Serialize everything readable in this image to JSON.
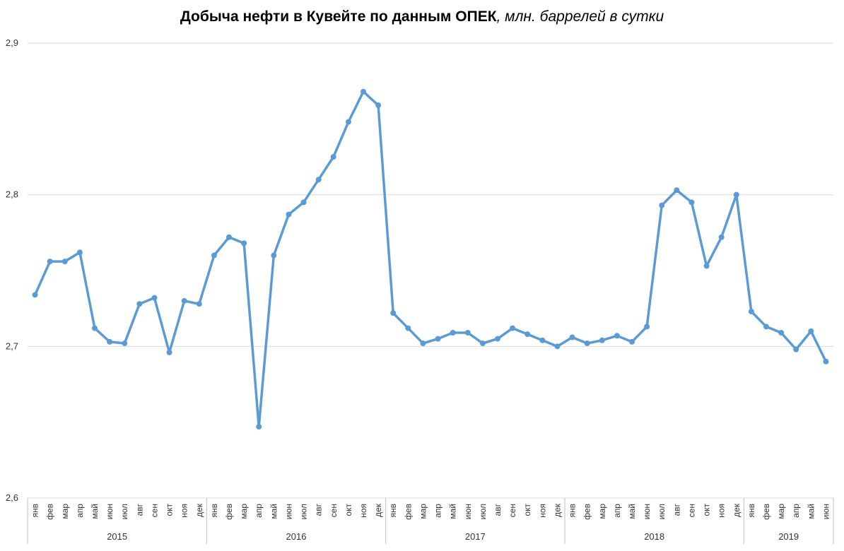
{
  "chart_data": {
    "type": "line",
    "title": "Добыча нефти в Кувейте по данным ОПЕК",
    "subtitle": ", млн. баррелей в сутки",
    "ylim": [
      2.6,
      2.9
    ],
    "yticks": [
      "2,6",
      "2,7",
      "2,8",
      "2,9"
    ],
    "ytick_values": [
      2.6,
      2.7,
      2.8,
      2.9
    ],
    "grid": true,
    "line_color": "#5B9BD5",
    "months": [
      "янв",
      "фев",
      "мар",
      "апр",
      "май",
      "июн",
      "июл",
      "авг",
      "сен",
      "окт",
      "ноя",
      "дек"
    ],
    "years": [
      "2015",
      "2016",
      "2017",
      "2018",
      "2019"
    ],
    "x": [
      "янв 2015",
      "фев 2015",
      "мар 2015",
      "апр 2015",
      "май 2015",
      "июн 2015",
      "июл 2015",
      "авг 2015",
      "сен 2015",
      "окт 2015",
      "ноя 2015",
      "дек 2015",
      "янв 2016",
      "фев 2016",
      "мар 2016",
      "апр 2016",
      "май 2016",
      "июн 2016",
      "июл 2016",
      "авг 2016",
      "сен 2016",
      "окт 2016",
      "ноя 2016",
      "дек 2016",
      "янв 2017",
      "фев 2017",
      "мар 2017",
      "апр 2017",
      "май 2017",
      "июн 2017",
      "июл 2017",
      "авг 2017",
      "сен 2017",
      "окт 2017",
      "ноя 2017",
      "дек 2017",
      "янв 2018",
      "фев 2018",
      "мар 2018",
      "апр 2018",
      "май 2018",
      "июн 2018",
      "июл 2018",
      "авг 2018",
      "сен 2018",
      "окт 2018",
      "ноя 2018",
      "дек 2018",
      "янв 2019",
      "фев 2019",
      "мар 2019",
      "апр 2019",
      "май 2019",
      "июн 2019"
    ],
    "values": [
      2.734,
      2.756,
      2.756,
      2.762,
      2.712,
      2.703,
      2.702,
      2.728,
      2.732,
      2.696,
      2.73,
      2.728,
      2.76,
      2.772,
      2.768,
      2.647,
      2.76,
      2.787,
      2.795,
      2.81,
      2.825,
      2.848,
      2.868,
      2.859,
      2.722,
      2.712,
      2.702,
      2.705,
      2.709,
      2.709,
      2.702,
      2.705,
      2.712,
      2.708,
      2.704,
      2.7,
      2.706,
      2.702,
      2.704,
      2.707,
      2.703,
      2.713,
      2.793,
      2.803,
      2.795,
      2.753,
      2.772,
      2.8,
      2.723,
      2.713,
      2.709,
      2.698,
      2.71,
      2.69
    ]
  }
}
